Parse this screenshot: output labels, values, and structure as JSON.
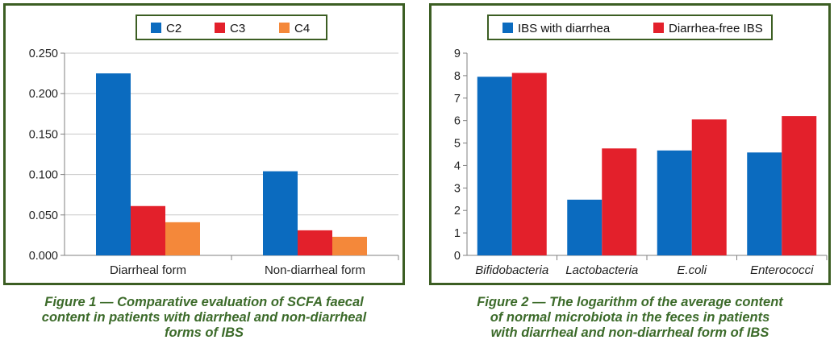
{
  "chart_data": [
    {
      "type": "bar",
      "categories": [
        "Diarrheal form",
        "Non-diarrheal form"
      ],
      "series": [
        {
          "name": "C2",
          "values": [
            0.225,
            0.104
          ],
          "color": "#0b6bbf"
        },
        {
          "name": "C3",
          "values": [
            0.061,
            0.031
          ],
          "color": "#e3202b"
        },
        {
          "name": "C4",
          "values": [
            0.041,
            0.023
          ],
          "color": "#f4883a"
        }
      ],
      "ylim": [
        0,
        0.25
      ],
      "yticks": [
        "0.000",
        "0.050",
        "0.100",
        "0.150",
        "0.200",
        "0.250"
      ],
      "grid": true,
      "legend": "top-center",
      "caption": [
        "Figure 1 — Comparative evaluation of SCFA faecal",
        "content in patients with diarrheal and non-diarrheal",
        "forms of IBS"
      ]
    },
    {
      "type": "bar",
      "categories": [
        "Bifidobacteria",
        "Lactobacteria",
        "E.coli",
        "Enterococci"
      ],
      "series": [
        {
          "name": "IBS with diarrhea",
          "values": [
            7.95,
            2.48,
            4.67,
            4.58
          ],
          "color": "#0b6bbf"
        },
        {
          "name": "Diarrhea-free IBS",
          "values": [
            8.12,
            4.76,
            6.05,
            6.2
          ],
          "color": "#e3202b"
        }
      ],
      "ylim": [
        0,
        9
      ],
      "yticks": [
        "0",
        "1",
        "2",
        "3",
        "4",
        "5",
        "6",
        "7",
        "8",
        "9"
      ],
      "grid": false,
      "legend": "top-center",
      "caption": [
        "Figure 2 — The logarithm of the average content",
        "of normal microbiota in the feces in patients",
        "with diarrheal and non-diarrheal form of IBS"
      ]
    }
  ]
}
